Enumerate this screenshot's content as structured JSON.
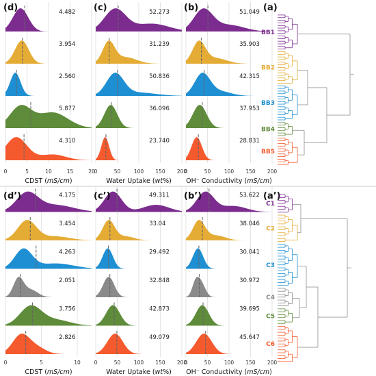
{
  "colors": {
    "purple": "#7B2C8E",
    "yellow": "#E5AC35",
    "blue": "#1E8FD2",
    "green": "#5E8C3A",
    "red": "#F55A2E",
    "gray": "#8A8A8A",
    "tree": "#9A9A9A"
  },
  "chart_data": [
    {
      "type": "area",
      "panel_label": "(d)",
      "xlabel_main": "CDST (",
      "xlabel_unit": "mS/cm",
      "xlabel_end": ")",
      "xlim": [
        0,
        20
      ],
      "xticks": [
        "0",
        "5",
        "10",
        "15",
        "20"
      ],
      "rows": [
        {
          "name": "BB1",
          "color": "purple",
          "median_label": "4.482",
          "median": 4.482,
          "peaks": [
            [
              3.5,
              1.8,
              1.0
            ]
          ]
        },
        {
          "name": "BB2",
          "color": "yellow",
          "median_label": "3.954",
          "median": 3.954,
          "peaks": [
            [
              3.8,
              1.6,
              1.0
            ]
          ]
        },
        {
          "name": "BB3",
          "color": "blue",
          "median_label": "2.560",
          "median": 2.56,
          "peaks": [
            [
              2.3,
              1.2,
              1.0
            ]
          ]
        },
        {
          "name": "BB4",
          "color": "green",
          "median_label": "5.877",
          "median": 5.877,
          "peaks": [
            [
              3.5,
              2.5,
              0.9
            ],
            [
              11,
              3.5,
              0.65
            ]
          ]
        },
        {
          "name": "BB5",
          "color": "red",
          "median_label": "4.310",
          "median": 4.31,
          "peaks": [
            [
              2.5,
              2.5,
              1.0
            ],
            [
              11,
              3.0,
              0.25
            ]
          ]
        }
      ]
    },
    {
      "type": "area",
      "panel_label": "(c)",
      "xlabel_main": "Water Uptake (",
      "xlabel_unit": "wt",
      "xlabel_end": "%)",
      "xlim": [
        0,
        200
      ],
      "xticks": [
        "0",
        "50",
        "100",
        "150",
        "200"
      ],
      "rows": [
        {
          "name": "BB1",
          "color": "purple",
          "median_label": "52.273",
          "median": 52.273,
          "peaks": [
            [
              45,
              25,
              1.0
            ],
            [
              130,
              40,
              0.35
            ]
          ]
        },
        {
          "name": "BB2",
          "color": "yellow",
          "median_label": "31.239",
          "median": 31.239,
          "peaks": [
            [
              30,
              14,
              1.0
            ],
            [
              70,
              25,
              0.3
            ]
          ]
        },
        {
          "name": "BB3",
          "color": "blue",
          "median_label": "50.836",
          "median": 50.836,
          "peaks": [
            [
              45,
              20,
              1.0
            ],
            [
              100,
              40,
              0.15
            ]
          ]
        },
        {
          "name": "BB4",
          "color": "green",
          "median_label": "36.096",
          "median": 36.096,
          "peaks": [
            [
              35,
              15,
              1.0
            ]
          ]
        },
        {
          "name": "BB5",
          "color": "red",
          "median_label": "23.740",
          "median": 23.74,
          "peaks": [
            [
              22,
              9,
              1.0
            ]
          ]
        }
      ]
    },
    {
      "type": "area",
      "panel_label": "(b)",
      "xlabel_main": "OH⁻ Conductivity (",
      "xlabel_unit": "mS/cm",
      "xlabel_end": ")",
      "xlim": [
        0,
        200
      ],
      "xticks": [
        "0",
        "50",
        "100",
        "150",
        "200"
      ],
      "rows": [
        {
          "name": "BB1",
          "color": "purple",
          "median_label": "51.049",
          "median": 51.049,
          "peaks": [
            [
              40,
              22,
              1.0
            ],
            [
              100,
              35,
              0.3
            ]
          ]
        },
        {
          "name": "BB2",
          "color": "yellow",
          "median_label": "35.903",
          "median": 35.903,
          "peaks": [
            [
              30,
              15,
              1.0
            ],
            [
              70,
              25,
              0.25
            ]
          ]
        },
        {
          "name": "BB3",
          "color": "blue",
          "median_label": "42.315",
          "median": 42.315,
          "peaks": [
            [
              38,
              18,
              1.0
            ],
            [
              80,
              25,
              0.2
            ]
          ]
        },
        {
          "name": "BB4",
          "color": "green",
          "median_label": "37.953",
          "median": 37.953,
          "peaks": [
            [
              32,
              16,
              1.0
            ]
          ]
        },
        {
          "name": "BB5",
          "color": "red",
          "median_label": "28.831",
          "median": 28.831,
          "peaks": [
            [
              25,
              12,
              1.0
            ]
          ]
        }
      ]
    },
    {
      "type": "area",
      "panel_label": "(d’)",
      "xlabel_main": "CDST (",
      "xlabel_unit": "mS/cm",
      "xlabel_end": ")",
      "xlim": [
        0,
        12
      ],
      "xticks": [
        "0",
        "5",
        "10"
      ],
      "rows": [
        {
          "name": "C1",
          "color": "purple",
          "median_label": "4.175",
          "median": 4.175,
          "peaks": [
            [
              3.0,
              1.5,
              0.8
            ],
            [
              7,
              2.5,
              0.3
            ]
          ]
        },
        {
          "name": "C2",
          "color": "yellow",
          "median_label": "3.454",
          "median": 3.454,
          "peaks": [
            [
              3.0,
              1.3,
              1.0
            ],
            [
              7,
              2.0,
              0.2
            ]
          ]
        },
        {
          "name": "C3",
          "color": "blue",
          "median_label": "4.263",
          "median": 4.263,
          "peaks": [
            [
              2.5,
              1.2,
              0.9
            ],
            [
              7,
              2.5,
              0.25
            ]
          ]
        },
        {
          "name": "C4",
          "color": "gray",
          "median_label": "2.051",
          "median": 2.051,
          "peaks": [
            [
              1.8,
              0.7,
              1.0
            ],
            [
              3.5,
              1.0,
              0.4
            ]
          ]
        },
        {
          "name": "C5",
          "color": "green",
          "median_label": "3.756",
          "median": 3.756,
          "peaks": [
            [
              3.5,
              1.5,
              1.0
            ],
            [
              7,
              2.0,
              0.3
            ]
          ]
        },
        {
          "name": "C6",
          "color": "red",
          "median_label": "2.826",
          "median": 2.826,
          "peaks": [
            [
              2.2,
              1.2,
              1.0
            ],
            [
              4.5,
              1.2,
              0.3
            ]
          ]
        }
      ]
    },
    {
      "type": "area",
      "panel_label": "(c’)",
      "xlabel_main": "Water Uptake (",
      "xlabel_unit": "wt",
      "xlabel_end": "%)",
      "xlim": [
        0,
        200
      ],
      "xticks": [
        "0",
        "50",
        "100",
        "150",
        "200"
      ],
      "rows": [
        {
          "name": "C1",
          "color": "purple",
          "median_label": "49.311",
          "median": 49.311,
          "peaks": [
            [
              40,
              20,
              1.0
            ],
            [
              140,
              30,
              0.35
            ]
          ]
        },
        {
          "name": "C2",
          "color": "yellow",
          "median_label": "33.04",
          "median": 33.04,
          "peaks": [
            [
              30,
              14,
              1.0
            ],
            [
              70,
              20,
              0.2
            ]
          ]
        },
        {
          "name": "C3",
          "color": "blue",
          "median_label": "29.492",
          "median": 29.492,
          "peaks": [
            [
              28,
              12,
              1.0
            ]
          ]
        },
        {
          "name": "C4",
          "color": "gray",
          "median_label": "32.848",
          "median": 32.848,
          "peaks": [
            [
              30,
              13,
              1.0
            ]
          ]
        },
        {
          "name": "C5",
          "color": "green",
          "median_label": "42.873",
          "median": 42.873,
          "peaks": [
            [
              40,
              16,
              1.0
            ]
          ]
        },
        {
          "name": "C6",
          "color": "red",
          "median_label": "49.079",
          "median": 49.079,
          "peaks": [
            [
              45,
              18,
              1.0
            ]
          ]
        }
      ]
    },
    {
      "type": "area",
      "panel_label": "(b’)",
      "xlabel_main": "OH⁻ Conductivity (",
      "xlabel_unit": "mS/cm",
      "xlabel_end": ")",
      "xlim": [
        0,
        200
      ],
      "xticks": [
        "0",
        "50",
        "100",
        "150",
        "200"
      ],
      "rows": [
        {
          "name": "C1",
          "color": "purple",
          "median_label": "53.622",
          "median": 53.622,
          "peaks": [
            [
              45,
              20,
              1.0
            ],
            [
              110,
              30,
              0.3
            ]
          ]
        },
        {
          "name": "C2",
          "color": "yellow",
          "median_label": "38.046",
          "median": 38.046,
          "peaks": [
            [
              30,
              14,
              1.0
            ],
            [
              70,
              22,
              0.25
            ]
          ]
        },
        {
          "name": "C3",
          "color": "blue",
          "median_label": "30.041",
          "median": 30.041,
          "peaks": [
            [
              28,
              12,
              1.0
            ]
          ]
        },
        {
          "name": "C4",
          "color": "gray",
          "median_label": "30.972",
          "median": 30.972,
          "peaks": [
            [
              22,
              8,
              0.8
            ],
            [
              35,
              10,
              0.9
            ]
          ]
        },
        {
          "name": "C5",
          "color": "green",
          "median_label": "39.695",
          "median": 39.695,
          "peaks": [
            [
              38,
              15,
              1.0
            ]
          ]
        },
        {
          "name": "C6",
          "color": "red",
          "median_label": "45.647",
          "median": 45.647,
          "peaks": [
            [
              42,
              18,
              1.0
            ]
          ]
        }
      ]
    }
  ],
  "dendrograms": [
    {
      "panel_label": "(a)",
      "clusters": [
        {
          "label": "BB1",
          "color": "purple",
          "leaves": 14
        },
        {
          "label": "BB2",
          "color": "yellow",
          "leaves": 13
        },
        {
          "label": "BB3",
          "color": "blue",
          "leaves": 14
        },
        {
          "label": "BB4",
          "color": "green",
          "leaves": 6
        },
        {
          "label": "BB5",
          "color": "red",
          "leaves": 11
        }
      ]
    },
    {
      "panel_label": "(a’)",
      "clusters": [
        {
          "label": "C1",
          "color": "purple",
          "leaves": 7
        },
        {
          "label": "C2",
          "color": "yellow",
          "leaves": 10
        },
        {
          "label": "C3",
          "color": "blue",
          "leaves": 15
        },
        {
          "label": "C4",
          "color": "gray",
          "leaves": 7
        },
        {
          "label": "C5",
          "color": "green",
          "leaves": 6
        },
        {
          "label": "C6",
          "color": "red",
          "leaves": 13
        }
      ]
    }
  ]
}
